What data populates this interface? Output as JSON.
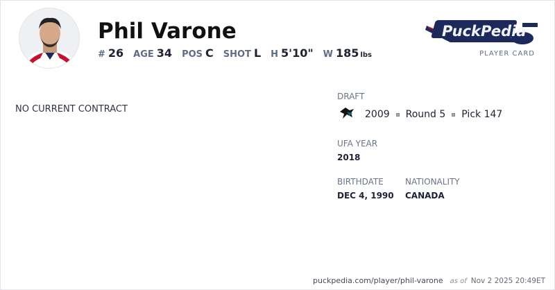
{
  "player": {
    "name": "Phil Varone",
    "number_label": "#",
    "number": "26",
    "age_label": "AGE",
    "age": "34",
    "pos_label": "POS",
    "pos": "C",
    "shot_label": "SHOT",
    "shot": "L",
    "height_label": "H",
    "height": "5'10\"",
    "weight_label": "W",
    "weight": "185",
    "weight_unit": "lbs"
  },
  "brand": {
    "logo_text": "PuckPedia",
    "card_label": "PLAYER CARD"
  },
  "contract": {
    "status": "NO CURRENT CONTRACT"
  },
  "draft": {
    "label": "DRAFT",
    "team_icon": "sharks-logo-icon",
    "year": "2009",
    "round": "Round 5",
    "pick": "Pick 147"
  },
  "ufa": {
    "label": "UFA YEAR",
    "value": "2018"
  },
  "birthdate": {
    "label": "BIRTHDATE",
    "value": "DEC 4, 1990"
  },
  "nationality": {
    "label": "NATIONALITY",
    "value": "CANADA"
  },
  "footer": {
    "url": "puckpedia.com/player/phil-varone",
    "as_of": "as of",
    "timestamp": "Nov 2 2025 20:49ET"
  }
}
